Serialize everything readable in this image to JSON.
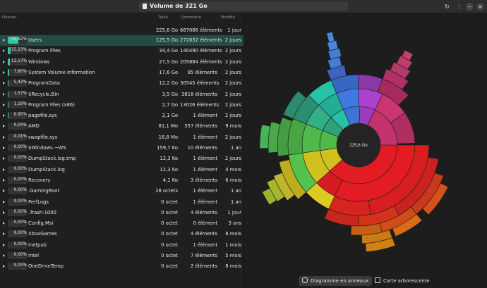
{
  "window": {
    "title": "Volume de 321 Go"
  },
  "columns": {
    "folder": "Dossier",
    "size": "Taille",
    "contents": "Sommaire",
    "modified": "Modifié"
  },
  "summary": {
    "size": "225,6 Go",
    "count": "667086 éléments",
    "modified": "1 jour"
  },
  "rows": [
    {
      "pct": "55,62%",
      "fill": 0.5562,
      "name": "Users",
      "size": "125,5 Go",
      "count": "272632 éléments",
      "mod": "2 jours",
      "selected": true
    },
    {
      "pct": "15,23%",
      "fill": 0.1523,
      "name": "Program Files",
      "size": "34,4 Go",
      "count": "140490 éléments",
      "mod": "2 jours"
    },
    {
      "pct": "12,17%",
      "fill": 0.1217,
      "name": "Windows",
      "size": "27,5 Go",
      "count": "205884 éléments",
      "mod": "2 jours"
    },
    {
      "pct": "7,80%",
      "fill": 0.078,
      "name": "System Volume Information",
      "size": "17,6 Go",
      "count": "95 éléments",
      "mod": "2 jours"
    },
    {
      "pct": "5,42%",
      "fill": 0.0542,
      "name": "ProgramData",
      "size": "12,2 Go",
      "count": "30545 éléments",
      "mod": "2 jours"
    },
    {
      "pct": "1,57%",
      "fill": 0.0157,
      "name": "$Recycle.Bin",
      "size": "3,5 Go",
      "count": "3818 éléments",
      "mod": "2 jours"
    },
    {
      "pct": "1,19%",
      "fill": 0.0119,
      "name": "Program Files (x86)",
      "size": "2,7 Go",
      "count": "13026 éléments",
      "mod": "2 jours"
    },
    {
      "pct": "0,95%",
      "fill": 0.0095,
      "name": "pagefile.sys",
      "size": "2,1 Go",
      "count": "1 élément",
      "mod": "2 jours"
    },
    {
      "pct": "0,04%",
      "fill": 0.0004,
      "name": "AMD",
      "size": "81,1 Mo",
      "count": "557 éléments",
      "mod": "9 mois"
    },
    {
      "pct": "0,01%",
      "fill": 0.0001,
      "name": "swapfile.sys",
      "size": "16,8 Mo",
      "count": "1 élément",
      "mod": "2 jours"
    },
    {
      "pct": "0,00%",
      "fill": 0,
      "name": "$Windows.~WS",
      "size": "159,7 Ko",
      "count": "10 éléments",
      "mod": "1 an"
    },
    {
      "pct": "0,00%",
      "fill": 0,
      "name": "DumpStack.log.tmp",
      "size": "12,3 Ko",
      "count": "1 élément",
      "mod": "2 jours"
    },
    {
      "pct": "0,00%",
      "fill": 0,
      "name": "DumpStack.log",
      "size": "12,3 Ko",
      "count": "1 élément",
      "mod": "4 mois"
    },
    {
      "pct": "0,00%",
      "fill": 0,
      "name": "Recovery",
      "size": "4,1 Ko",
      "count": "3 éléments",
      "mod": "6 mois"
    },
    {
      "pct": "0,00%",
      "fill": 0,
      "name": ".GamingRoot",
      "size": "28 octets",
      "count": "1 élément",
      "mod": "1 an"
    },
    {
      "pct": "0,00%",
      "fill": 0,
      "name": "PerfLogs",
      "size": "0 octet",
      "count": "1 élément",
      "mod": "1 an"
    },
    {
      "pct": "0,00%",
      "fill": 0,
      "name": ".Trash-1000",
      "size": "0 octet",
      "count": "4 éléments",
      "mod": "1 jour"
    },
    {
      "pct": "0,00%",
      "fill": 0,
      "name": "Config.Msi",
      "size": "0 octet",
      "count": "0 élément",
      "mod": "3 ans"
    },
    {
      "pct": "0,00%",
      "fill": 0,
      "name": "XboxGames",
      "size": "0 octet",
      "count": "4 éléments",
      "mod": "8 mois"
    },
    {
      "pct": "0,00%",
      "fill": 0,
      "name": "inetpub",
      "size": "0 octet",
      "count": "1 élément",
      "mod": "1 mois"
    },
    {
      "pct": "0,00%",
      "fill": 0,
      "name": "Intel",
      "size": "0 octet",
      "count": "7 éléments",
      "mod": "5 mois"
    },
    {
      "pct": "0,00%",
      "fill": 0,
      "name": "OneDriveTemp",
      "size": "0 octet",
      "count": "2 éléments",
      "mod": "8 mois"
    }
  ],
  "chart": {
    "center_label": "225,6 Go"
  },
  "buttons": {
    "rings": "Diagramme en anneaux",
    "treemap": "Carte arborescente"
  },
  "headerbar": {
    "icons": [
      "refresh-icon",
      "menu-icon",
      "minimize-icon",
      "close-icon"
    ]
  },
  "colors": {
    "accent": "#33c5a6",
    "selected_row": "#244b44",
    "users": "#e31b23",
    "program_files": "#d2c021",
    "windows": "#50b94b",
    "system_volume": "#2f9f7c",
    "programdata": "#26c1a6",
    "recycle_bin": "#3d73d6",
    "program_files_x86": "#9b3dbb",
    "pagefile": "#c2336b"
  }
}
